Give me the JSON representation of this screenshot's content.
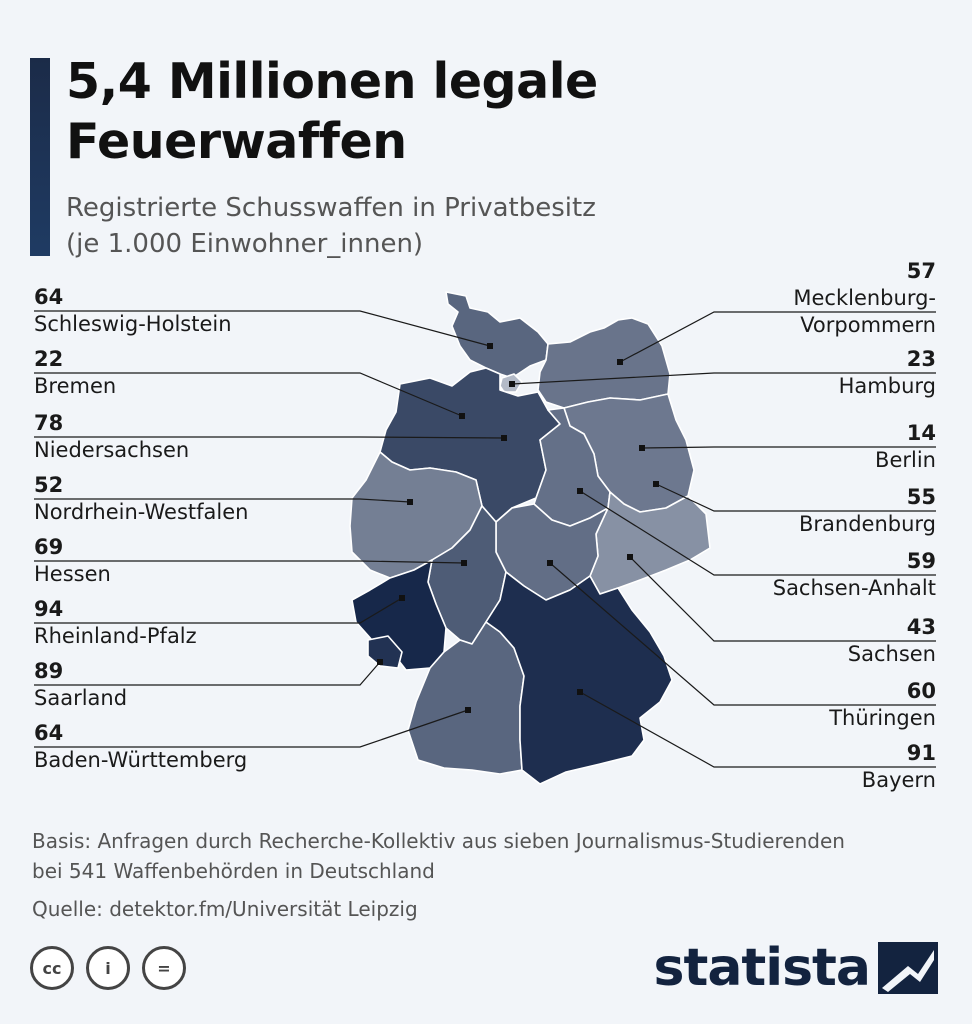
{
  "header": {
    "title_line1": "5,4 Millionen legale",
    "title_line2": "Feuerwaffen",
    "subtitle_line1": "Registrierte Schusswaffen in Privatbesitz",
    "subtitle_line2": "(je 1.000 Einwohner_innen)"
  },
  "states": [
    {
      "id": "sh",
      "name": "Schleswig-Holstein",
      "value": "64"
    },
    {
      "id": "hb",
      "name": "Bremen",
      "value": "22"
    },
    {
      "id": "ni",
      "name": "Niedersachsen",
      "value": "78"
    },
    {
      "id": "nw",
      "name": "Nordrhein-Westfalen",
      "value": "52"
    },
    {
      "id": "he",
      "name": "Hessen",
      "value": "69"
    },
    {
      "id": "rp",
      "name": "Rheinland-Pfalz",
      "value": "94"
    },
    {
      "id": "sl",
      "name": "Saarland",
      "value": "89"
    },
    {
      "id": "bw",
      "name": "Baden-Württemberg",
      "value": "64"
    },
    {
      "id": "mv",
      "name": "Mecklenburg-\nVorpommern",
      "value": "57"
    },
    {
      "id": "hh",
      "name": "Hamburg",
      "value": "23"
    },
    {
      "id": "be",
      "name": "Berlin",
      "value": "14"
    },
    {
      "id": "bb",
      "name": "Brandenburg",
      "value": "55"
    },
    {
      "id": "st",
      "name": "Sachsen-Anhalt",
      "value": "59"
    },
    {
      "id": "sn",
      "name": "Sachsen",
      "value": "43"
    },
    {
      "id": "th",
      "name": "Thüringen",
      "value": "60"
    },
    {
      "id": "by",
      "name": "Bayern",
      "value": "91"
    }
  ],
  "footer": {
    "basis_line1": "Basis: Anfragen durch Recherche-Kollektiv aus sieben Journalismus-Studierenden",
    "basis_line2": "bei 541 Waffenbehörden in Deutschland",
    "source": "Quelle: detektor.fm/Universität Leipzig",
    "license_cc": "cc",
    "license_by": "i",
    "license_nd": "=",
    "brand": "statista"
  },
  "colors": {
    "background": "#f2f5f9",
    "accent": "#1b2b48",
    "scale_low": "#eef1f6",
    "scale_high": "#17284a"
  }
}
